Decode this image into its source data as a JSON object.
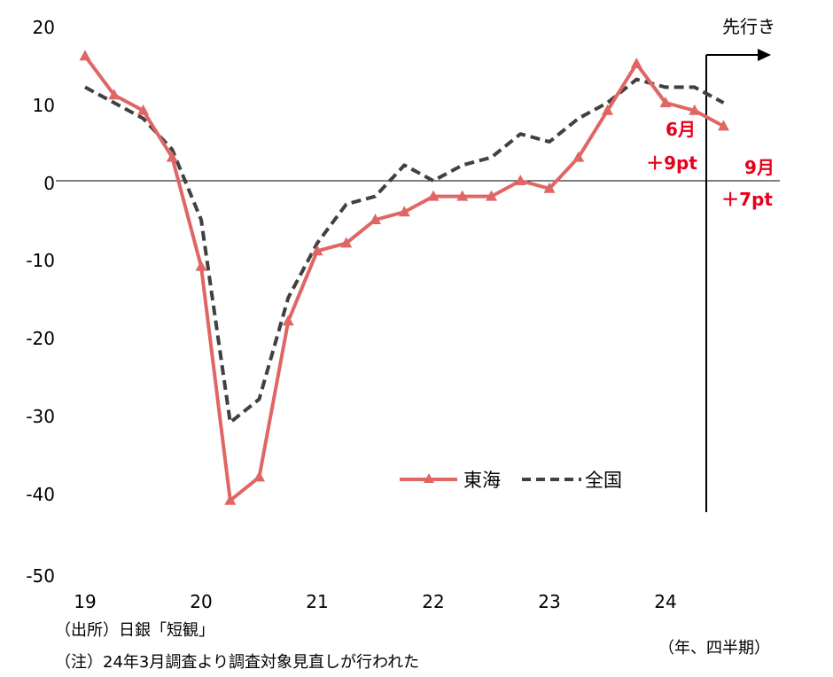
{
  "chart_data": {
    "type": "line",
    "y_ticks": [
      "20",
      "10",
      "0",
      "-10",
      "-20",
      "-30",
      "-40",
      "-50"
    ],
    "ylim": [
      -50,
      20
    ],
    "x_ticks": [
      "19",
      "20",
      "21",
      "22",
      "23",
      "24"
    ],
    "x_unit": "（年、四半期）",
    "forward_label": "先行き",
    "series": [
      {
        "name": "東海",
        "color": "#e06666",
        "style": "solid-triangle",
        "values": [
          16,
          11,
          9,
          3,
          -11,
          -41,
          -38,
          -18,
          -9,
          -8,
          -5,
          -4,
          -2,
          -2,
          -2,
          0,
          -1,
          3,
          9,
          15,
          10,
          9,
          7
        ]
      },
      {
        "name": "全国",
        "color": "#404040",
        "style": "dashed",
        "values": [
          12,
          10,
          8,
          4,
          -5,
          -31,
          -28,
          -15,
          -8,
          -3,
          -2,
          2,
          0,
          2,
          3,
          6,
          5,
          8,
          10,
          13,
          12,
          12,
          10
        ]
      }
    ],
    "annotations": [
      {
        "month": "6月",
        "value": "＋9pt"
      },
      {
        "month": "9月",
        "value": "＋7pt"
      }
    ]
  },
  "notes": {
    "source": "（出所）日銀「短観」",
    "note": "（注）24年3月調査より調査対象見直しが行われた"
  }
}
